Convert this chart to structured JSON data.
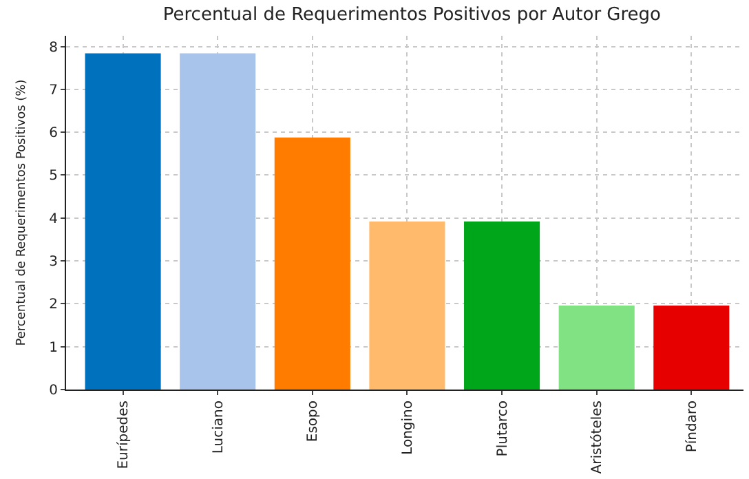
{
  "chart_data": {
    "type": "bar",
    "title": "Percentual de Requerimentos Positivos por Autor Grego",
    "ylabel": "Percentual de Requerimentos Positivos (%)",
    "categories": [
      "Eurípedes",
      "Luciano",
      "Esopo",
      "Longino",
      "Plutarco",
      "Aristóteles",
      "Píndaro"
    ],
    "values": [
      7.84,
      7.84,
      5.88,
      3.92,
      3.92,
      1.96,
      1.96
    ],
    "colors": [
      "#0071bc",
      "#a8c4ea",
      "#ff7c00",
      "#ffba6c",
      "#00a61a",
      "#80e282",
      "#e60000"
    ],
    "ylim": [
      0,
      8.25
    ],
    "yticks": [
      0,
      1,
      2,
      3,
      4,
      5,
      6,
      7,
      8
    ],
    "grid": true
  }
}
